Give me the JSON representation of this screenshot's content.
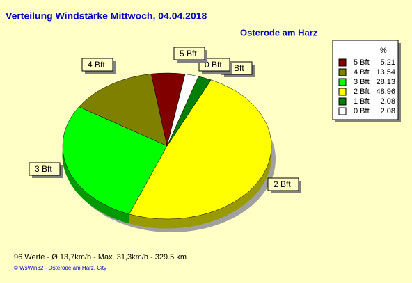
{
  "chart_data": {
    "type": "pie",
    "title": "Verteilung Windstärke  Mittwoch, 04.04.2018",
    "subtitle": "Osterode am Harz",
    "legend_header": "%",
    "categories": [
      "5 Bft",
      "4 Bft",
      "3 Bft",
      "2 Bft",
      "1 Bft",
      "0 Bft"
    ],
    "values": [
      5.21,
      13.54,
      28.13,
      48.96,
      2.08,
      2.08
    ],
    "value_labels": [
      "5,21",
      "13,54",
      "28,13",
      "48,96",
      "2,08",
      "2,08"
    ],
    "colors": [
      "#800000",
      "#808000",
      "#00ff00",
      "#ffff00",
      "#008000",
      "#ffffff"
    ],
    "footer": "96 Werte   -   Ø 13,7km/h   -   Max. 31,3km/h   -   329.5 km",
    "credit": "© WsWin32  -  Osterode am Harz, City"
  }
}
